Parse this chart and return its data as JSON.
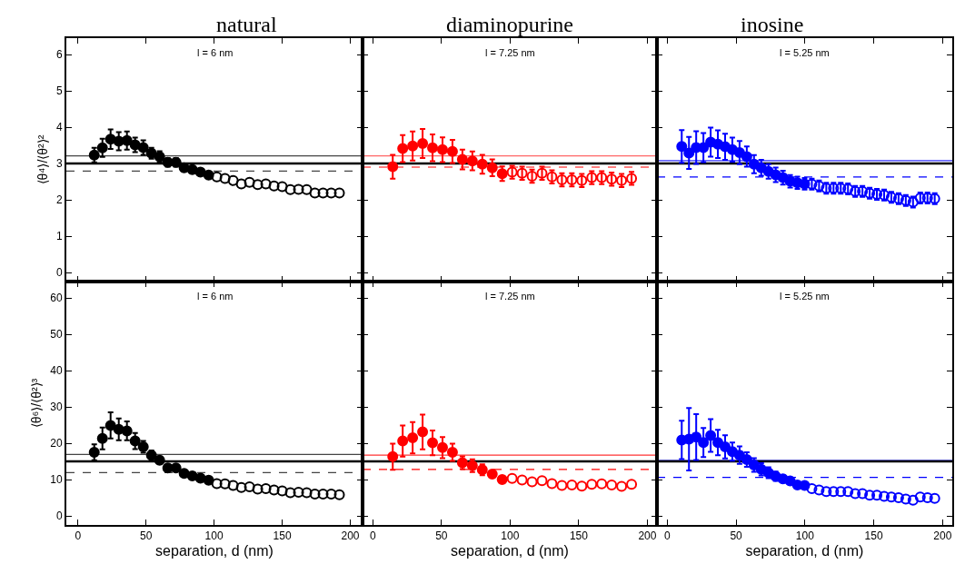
{
  "chart_data": [
    {
      "type": "scatter",
      "title": "natural",
      "ylabel": "⟨θ⁴⟩/⟨θ²⟩²",
      "annotations": [
        "l = 6 nm"
      ],
      "xlim": [
        -8.5,
        209
      ],
      "ylim": [
        -0.25,
        6.45
      ],
      "xticks": [
        0,
        50,
        100,
        150,
        200
      ],
      "yticks": [
        0,
        1,
        2,
        3,
        4,
        5,
        6
      ],
      "tick_labels": "y",
      "series": [
        {
          "color": "#000000",
          "marker": "circle",
          "x": [
            12,
            18,
            24,
            30,
            36,
            42,
            48,
            54,
            60,
            66,
            72,
            78,
            84,
            90,
            96
          ],
          "values": [
            3.23,
            3.43,
            3.67,
            3.61,
            3.63,
            3.51,
            3.44,
            3.28,
            3.19,
            3.03,
            3.03,
            2.88,
            2.83,
            2.76,
            2.68
          ],
          "errors": [
            0.2,
            0.25,
            0.27,
            0.25,
            0.25,
            0.2,
            0.2,
            0.15,
            0.15,
            0.12,
            0.12,
            0.1,
            0.1,
            null,
            null
          ]
        },
        {
          "color": "#000000",
          "marker": "circle-open",
          "x": [
            102,
            108,
            114,
            120,
            126,
            132,
            138,
            144,
            150,
            156,
            162,
            168,
            174,
            180,
            186,
            192
          ],
          "values": [
            2.63,
            2.59,
            2.53,
            2.44,
            2.48,
            2.42,
            2.44,
            2.38,
            2.36,
            2.28,
            2.29,
            2.28,
            2.19,
            2.19,
            2.19,
            2.19
          ]
        }
      ],
      "ref_lines": [
        {
          "axis": "y",
          "value": 3.21,
          "color": "#444444",
          "line_style": "solid"
        },
        {
          "axis": "y",
          "value": 3.0,
          "color": "#000000",
          "line_style": "solid"
        },
        {
          "axis": "y",
          "value": 2.79,
          "color": "#444444",
          "line_style": "dashed"
        }
      ]
    },
    {
      "type": "scatter",
      "title": "diaminopurine",
      "annotations": [
        "l = 7.25 nm"
      ],
      "xlim": [
        -7.5,
        207
      ],
      "ylim": [
        -0.25,
        6.45
      ],
      "xticks": [
        0,
        50,
        100,
        150,
        200
      ],
      "yticks": [
        0,
        1,
        2,
        3,
        4,
        5,
        6
      ],
      "tick_labels": false,
      "series": [
        {
          "color": "#ff0000",
          "marker": "circle",
          "x": [
            14.5,
            21.75,
            29,
            36.25,
            43.5,
            50.75,
            58,
            65.25,
            72.5,
            79.75,
            87,
            94.25
          ],
          "values": [
            2.91,
            3.41,
            3.48,
            3.55,
            3.43,
            3.38,
            3.33,
            3.11,
            3.07,
            2.98,
            2.88,
            2.72
          ],
          "errors": [
            0.33,
            0.37,
            0.4,
            0.4,
            0.37,
            0.34,
            0.32,
            0.27,
            0.26,
            0.26,
            0.23,
            0.2
          ]
        },
        {
          "color": "#ff0000",
          "marker": "circle-open",
          "x": [
            101.5,
            108.75,
            116,
            123.25,
            130.5,
            137.75,
            145,
            152.25,
            159.5,
            166.75,
            174,
            181.25,
            188.5
          ],
          "values": [
            2.76,
            2.73,
            2.65,
            2.73,
            2.63,
            2.55,
            2.55,
            2.53,
            2.61,
            2.61,
            2.57,
            2.53,
            2.59
          ],
          "errors": [
            0.18,
            0.18,
            0.18,
            0.18,
            0.18,
            0.18,
            0.18,
            0.18,
            0.18,
            0.18,
            0.18,
            0.18,
            0.18
          ]
        }
      ],
      "ref_lines": [
        {
          "axis": "y",
          "value": 3.21,
          "color": "#ff6666",
          "line_style": "solid"
        },
        {
          "axis": "y",
          "value": 3.0,
          "color": "#000000",
          "line_style": "solid"
        },
        {
          "axis": "y",
          "value": 2.9,
          "color": "#ff0000",
          "line_style": "dashed"
        }
      ]
    },
    {
      "type": "scatter",
      "title": "inosine",
      "annotations": [
        "l = 5.25 nm"
      ],
      "xlim": [
        -7.5,
        207
      ],
      "ylim": [
        -0.25,
        6.45
      ],
      "xticks": [
        0,
        50,
        100,
        150,
        200
      ],
      "yticks": [
        0,
        1,
        2,
        3,
        4,
        5,
        6
      ],
      "tick_labels": false,
      "series": [
        {
          "color": "#0000ff",
          "marker": "circle",
          "x": [
            10.5,
            15.75,
            21,
            26.25,
            31.5,
            36.75,
            42,
            47.25,
            52.5,
            57.75,
            63,
            68.25,
            73.5,
            78.75,
            84,
            89.25,
            94.5,
            99.75
          ],
          "values": [
            3.47,
            3.29,
            3.44,
            3.44,
            3.59,
            3.53,
            3.46,
            3.38,
            3.3,
            3.19,
            2.98,
            2.88,
            2.78,
            2.69,
            2.61,
            2.51,
            2.47,
            2.44
          ],
          "errors": [
            0.45,
            0.44,
            0.45,
            0.4,
            0.4,
            0.38,
            0.36,
            0.33,
            0.32,
            0.28,
            0.25,
            0.22,
            0.2,
            0.2,
            0.19,
            0.17,
            0.17,
            0.16
          ]
        },
        {
          "color": "#0000ff",
          "marker": "circle-open",
          "x": [
            105,
            110.25,
            115.5,
            120.75,
            126,
            131.25,
            136.5,
            141.75,
            147,
            152.25,
            157.5,
            162.75,
            168,
            173.25,
            178.5,
            183.75,
            189,
            194.25
          ],
          "values": [
            2.43,
            2.38,
            2.32,
            2.32,
            2.32,
            2.3,
            2.23,
            2.23,
            2.18,
            2.15,
            2.13,
            2.07,
            2.03,
            1.98,
            1.94,
            2.05,
            2.05,
            2.03
          ],
          "errors": [
            0.15,
            0.15,
            0.15,
            0.15,
            0.15,
            0.15,
            0.15,
            0.15,
            0.15,
            0.15,
            0.15,
            0.15,
            0.15,
            0.15,
            0.15,
            0.15,
            0.15,
            0.15
          ]
        }
      ],
      "ref_lines": [
        {
          "axis": "y",
          "value": 3.08,
          "color": "#3333ff",
          "line_style": "solid"
        },
        {
          "axis": "y",
          "value": 3.0,
          "color": "#000000",
          "line_style": "solid"
        },
        {
          "axis": "y",
          "value": 2.63,
          "color": "#0000ff",
          "line_style": "dashed"
        }
      ]
    },
    {
      "type": "scatter",
      "ylabel": "⟨θ⁶⟩/⟨θ²⟩³",
      "xlabel": "separation, d (nm)",
      "annotations": [
        "l = 6 nm"
      ],
      "xlim": [
        -8.5,
        209
      ],
      "ylim": [
        -2.5,
        64.5
      ],
      "xticks": [
        0,
        50,
        100,
        150,
        200
      ],
      "yticks": [
        0,
        10,
        20,
        30,
        40,
        50,
        60
      ],
      "series": [
        {
          "color": "#000000",
          "marker": "circle",
          "x": [
            12,
            18,
            24,
            30,
            36,
            42,
            48,
            54,
            60,
            66,
            72,
            78,
            84,
            90,
            96
          ],
          "values": [
            17.5,
            21.3,
            24.9,
            23.8,
            23.4,
            20.6,
            19,
            16.7,
            15.3,
            13.2,
            13.2,
            11.7,
            11,
            10.4,
            9.8
          ],
          "errors": [
            2.2,
            3,
            3.6,
            3,
            2.6,
            2.2,
            1.6,
            1.3,
            1,
            null,
            null,
            null,
            null,
            null,
            null
          ]
        },
        {
          "color": "#000000",
          "marker": "circle-open",
          "x": [
            102,
            108,
            114,
            120,
            126,
            132,
            138,
            144,
            150,
            156,
            162,
            168,
            174,
            180,
            186,
            192
          ],
          "values": [
            8.9,
            8.8,
            8.4,
            7.8,
            8.0,
            7.4,
            7.5,
            7.1,
            6.9,
            6.4,
            6.5,
            6.4,
            6.0,
            6.0,
            6.0,
            5.8
          ]
        }
      ],
      "ref_lines": [
        {
          "axis": "y",
          "value": 16.9,
          "color": "#444444",
          "line_style": "solid"
        },
        {
          "axis": "y",
          "value": 15.0,
          "color": "#000000",
          "line_style": "solid"
        },
        {
          "axis": "y",
          "value": 11.9,
          "color": "#444444",
          "line_style": "dashed"
        }
      ]
    },
    {
      "type": "scatter",
      "xlabel": "separation, d (nm)",
      "annotations": [
        "l = 7.25 nm"
      ],
      "xlim": [
        -7.5,
        207
      ],
      "ylim": [
        -2.5,
        64.5
      ],
      "xticks": [
        0,
        50,
        100,
        150,
        200
      ],
      "yticks": [
        0,
        10,
        20,
        30,
        40,
        50,
        60
      ],
      "tick_labels": "x",
      "series": [
        {
          "color": "#ff0000",
          "marker": "circle",
          "x": [
            14.5,
            21.75,
            29,
            36.25,
            43.5,
            50.75,
            58,
            65.25,
            72.5,
            79.75,
            87,
            94.25
          ],
          "values": [
            16.3,
            20.6,
            21.5,
            23.1,
            20.1,
            18.8,
            17.5,
            14.6,
            13.8,
            12.7,
            11.5,
            10.0
          ],
          "errors": [
            3.6,
            4.3,
            4.3,
            4.8,
            3.4,
            2.9,
            2.4,
            1.75,
            1.75,
            1.5,
            1.0,
            null
          ]
        },
        {
          "color": "#ff0000",
          "marker": "circle-open",
          "x": [
            101.5,
            108.75,
            116,
            123.25,
            130.5,
            137.75,
            145,
            152.25,
            159.5,
            166.75,
            174,
            181.25,
            188.5
          ],
          "values": [
            10.3,
            9.9,
            9.4,
            9.7,
            8.9,
            8.4,
            8.5,
            8.2,
            8.7,
            8.8,
            8.5,
            8.1,
            8.7
          ]
        }
      ],
      "ref_lines": [
        {
          "axis": "y",
          "value": 16.7,
          "color": "#ff3333",
          "line_style": "solid"
        },
        {
          "axis": "y",
          "value": 15.0,
          "color": "#000000",
          "line_style": "solid"
        },
        {
          "axis": "y",
          "value": 12.8,
          "color": "#ff0000",
          "line_style": "dashed"
        }
      ]
    },
    {
      "type": "scatter",
      "xlabel": "separation, d (nm)",
      "annotations": [
        "l = 5.25 nm"
      ],
      "xlim": [
        -7.5,
        207
      ],
      "ylim": [
        -2.5,
        64.5
      ],
      "xticks": [
        0,
        50,
        100,
        150,
        200
      ],
      "yticks": [
        0,
        10,
        20,
        30,
        40,
        50,
        60
      ],
      "tick_labels": "x",
      "series": [
        {
          "color": "#0000ff",
          "marker": "circle",
          "x": [
            10.5,
            15.75,
            21,
            26.25,
            31.5,
            36.75,
            42,
            47.25,
            52.5,
            57.75,
            63,
            68.25,
            73.5,
            78.75,
            84,
            89.25,
            94.5,
            99.75
          ],
          "values": [
            20.9,
            21.1,
            21.7,
            20.2,
            22.1,
            20.2,
            19.0,
            17.7,
            16.7,
            15.5,
            14.0,
            12.8,
            11.9,
            10.9,
            10.2,
            9.6,
            8.5,
            8.4
          ],
          "errors": [
            5.3,
            8.6,
            6.3,
            4,
            4.5,
            3.5,
            3.2,
            2.5,
            2.4,
            2.0,
            1.9,
            1.7,
            1.5,
            1.3,
            1.0,
            0.9,
            null,
            null
          ]
        },
        {
          "color": "#0000ff",
          "marker": "circle-open",
          "x": [
            105,
            110.25,
            115.5,
            120.75,
            126,
            131.25,
            136.5,
            141.75,
            147,
            152.25,
            157.5,
            162.75,
            168,
            173.25,
            178.5,
            183.75,
            189,
            194.25
          ],
          "values": [
            7.5,
            7.1,
            6.7,
            6.7,
            6.7,
            6.7,
            6.1,
            6.1,
            5.7,
            5.7,
            5.4,
            5.2,
            5.0,
            4.6,
            4.3,
            5.2,
            5.0,
            4.8
          ]
        }
      ],
      "ref_lines": [
        {
          "axis": "y",
          "value": 15.2,
          "color": "#0000ff",
          "line_style": "solid"
        },
        {
          "axis": "y",
          "value": 15.0,
          "color": "#000000",
          "line_style": "solid"
        },
        {
          "axis": "y",
          "value": 10.6,
          "color": "#0000ff",
          "line_style": "dashed"
        }
      ]
    }
  ]
}
